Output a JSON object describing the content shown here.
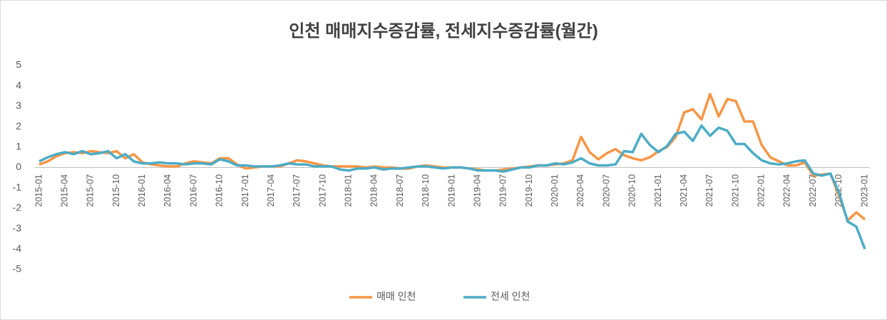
{
  "chart_data": {
    "type": "line",
    "title": "인천 매매지수증감률, 전세지수증감률(월간)",
    "categories": [
      "2015-01",
      null,
      null,
      "2015-04",
      null,
      null,
      "2015-07",
      null,
      null,
      "2015-10",
      null,
      null,
      "2016-01",
      null,
      null,
      "2016-04",
      null,
      null,
      "2016-07",
      null,
      null,
      "2016-10",
      null,
      null,
      "2017-01",
      null,
      null,
      "2017-04",
      null,
      null,
      "2017-07",
      null,
      null,
      "2017-10",
      null,
      null,
      "2018-01",
      null,
      null,
      "2018-04",
      null,
      null,
      "2018-07",
      null,
      null,
      "2018-10",
      null,
      null,
      "2019-01",
      null,
      null,
      "2019-04",
      null,
      null,
      "2019-07",
      null,
      null,
      "2019-10",
      null,
      null,
      "2020-01",
      null,
      null,
      "2020-04",
      null,
      null,
      "2020-07",
      null,
      null,
      "2020-10",
      null,
      null,
      "2021-01",
      null,
      null,
      "2021-04",
      null,
      null,
      "2021-07",
      null,
      null,
      "2021-10",
      null,
      null,
      "2022-01",
      null,
      null,
      "2022-04",
      null,
      null,
      "2022-07",
      null,
      null,
      "2022-10",
      null,
      null,
      "2023-01"
    ],
    "series": [
      {
        "name": "매매 인천",
        "color": "#f79646",
        "values": [
          0.15,
          0.3,
          0.55,
          0.7,
          0.75,
          0.7,
          0.8,
          0.75,
          0.7,
          0.8,
          0.45,
          0.65,
          0.25,
          0.15,
          0.1,
          0.05,
          0.05,
          0.2,
          0.3,
          0.25,
          0.2,
          0.45,
          0.45,
          0.15,
          -0.05,
          0.0,
          0.05,
          0.05,
          0.05,
          0.2,
          0.35,
          0.3,
          0.2,
          0.1,
          0.05,
          0.05,
          0.05,
          0.05,
          0.0,
          0.05,
          0.0,
          0.0,
          -0.05,
          -0.05,
          0.05,
          0.1,
          0.05,
          0.0,
          0.0,
          0.0,
          -0.05,
          -0.1,
          -0.15,
          -0.15,
          -0.1,
          -0.05,
          0.0,
          0.05,
          0.1,
          0.1,
          0.15,
          0.2,
          0.35,
          1.5,
          0.75,
          0.4,
          0.7,
          0.9,
          0.6,
          0.45,
          0.35,
          0.5,
          0.8,
          1.0,
          1.5,
          2.7,
          2.85,
          2.35,
          3.6,
          2.5,
          3.35,
          3.25,
          2.25,
          2.25,
          1.1,
          0.5,
          0.3,
          0.1,
          0.1,
          0.25,
          -0.4,
          -0.35,
          -0.3,
          -1.4,
          -2.6,
          -2.2,
          -2.55
        ]
      },
      {
        "name": "전세 인천",
        "color": "#4bacc6",
        "values": [
          0.3,
          0.5,
          0.65,
          0.75,
          0.65,
          0.8,
          0.65,
          0.7,
          0.8,
          0.45,
          0.65,
          0.3,
          0.2,
          0.2,
          0.25,
          0.2,
          0.2,
          0.15,
          0.2,
          0.2,
          0.15,
          0.4,
          0.3,
          0.1,
          0.1,
          0.05,
          0.05,
          0.05,
          0.1,
          0.2,
          0.15,
          0.15,
          0.05,
          0.05,
          0.05,
          -0.1,
          -0.15,
          -0.05,
          -0.05,
          0.0,
          -0.1,
          -0.05,
          -0.05,
          0.0,
          0.05,
          0.05,
          0.0,
          -0.05,
          0.0,
          0.0,
          -0.05,
          -0.15,
          -0.15,
          -0.15,
          -0.2,
          -0.1,
          0.0,
          0.0,
          0.1,
          0.1,
          0.2,
          0.15,
          0.25,
          0.45,
          0.2,
          0.1,
          0.1,
          0.15,
          0.8,
          0.75,
          1.65,
          1.1,
          0.75,
          1.05,
          1.65,
          1.75,
          1.3,
          2.05,
          1.55,
          1.95,
          1.8,
          1.15,
          1.15,
          0.7,
          0.35,
          0.2,
          0.15,
          0.2,
          0.3,
          0.35,
          -0.3,
          -0.4,
          -0.3,
          -1.25,
          -2.65,
          -2.9,
          -4.0
        ]
      }
    ],
    "ylim": [
      -5,
      5
    ],
    "yticks": [
      5,
      4,
      3,
      2,
      1,
      0,
      -1,
      -2,
      -3,
      -4,
      -5
    ],
    "grid": false,
    "legend": "bottom"
  }
}
